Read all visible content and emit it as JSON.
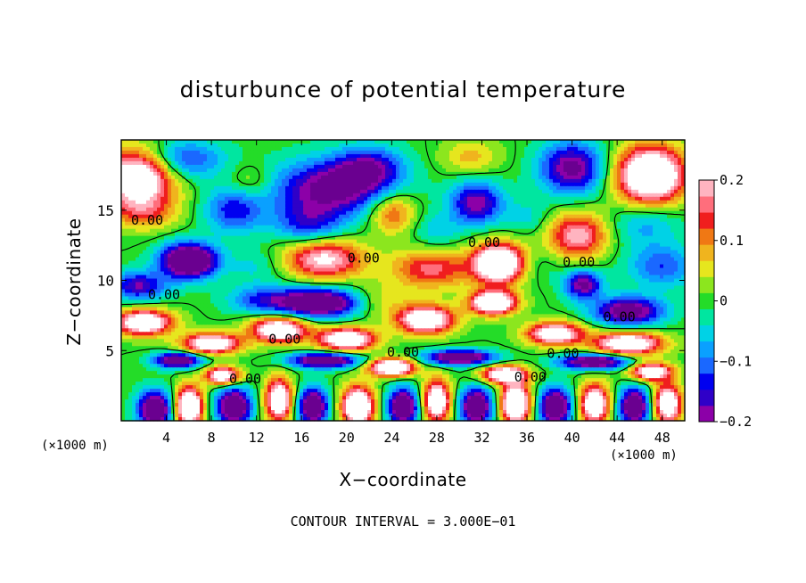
{
  "chart_data": {
    "type": "heatmap",
    "title": "disturbunce of potential temperature",
    "xlabel": "X−coordinate",
    "ylabel": "Z−coordinate",
    "x_unit": "(×1000 m)",
    "x_unit_right": "(×1000 m)",
    "xlim": [
      0,
      50
    ],
    "ylim": [
      0,
      20
    ],
    "x_ticks": [
      4,
      8,
      12,
      16,
      20,
      24,
      28,
      32,
      36,
      40,
      44,
      48
    ],
    "y_ticks": [
      5,
      10,
      15
    ],
    "colorbar": {
      "range": [
        -0.2,
        0.2
      ],
      "tick_values": [
        0.2,
        0.1,
        0,
        -0.1,
        -0.2
      ],
      "tick_labels": [
        "0.2",
        "0.1",
        "0",
        "−0.1",
        "−0.2"
      ]
    },
    "contour_interval_text": "CONTOUR INTERVAL = 3.000E−01",
    "contour_labels": [
      {
        "text": "0.00",
        "x": 2.3,
        "z": 14.3
      },
      {
        "text": "0.00",
        "x": 3.8,
        "z": 9.0
      },
      {
        "text": "0.00",
        "x": 21.5,
        "z": 11.6
      },
      {
        "text": "0.00",
        "x": 32.2,
        "z": 12.7
      },
      {
        "text": "0.00",
        "x": 40.6,
        "z": 11.3
      },
      {
        "text": "0.00",
        "x": 44.2,
        "z": 7.4
      },
      {
        "text": "0.00",
        "x": 14.5,
        "z": 5.8
      },
      {
        "text": "0.00",
        "x": 25.0,
        "z": 4.9
      },
      {
        "text": "0.00",
        "x": 39.2,
        "z": 4.8
      },
      {
        "text": "0.00",
        "x": 11.0,
        "z": 3.0
      },
      {
        "text": "0.00",
        "x": 36.3,
        "z": 3.1
      }
    ],
    "anomalies": [
      {
        "x": 1.5,
        "z": 17.3,
        "v": 0.3,
        "sx": 3.2,
        "sz": 2.0
      },
      {
        "x": 5.5,
        "z": 18.6,
        "v": -0.14,
        "sx": 3.5,
        "sz": 1.4
      },
      {
        "x": 2.0,
        "z": 14.8,
        "v": 0.1,
        "sx": 3.0,
        "sz": 1.2
      },
      {
        "x": 6.0,
        "z": 11.4,
        "v": -0.35,
        "sx": 2.4,
        "sz": 1.2
      },
      {
        "x": 1.5,
        "z": 9.6,
        "v": -0.18,
        "sx": 2.5,
        "sz": 1.0
      },
      {
        "x": 11.5,
        "z": 17.0,
        "v": 0.06,
        "sx": 2.0,
        "sz": 1.2
      },
      {
        "x": 10.0,
        "z": 15.0,
        "v": -0.14,
        "sx": 2.5,
        "sz": 1.6
      },
      {
        "x": 12.0,
        "z": 11.0,
        "v": -0.05,
        "sx": 2.5,
        "sz": 1.2
      },
      {
        "x": 12.5,
        "z": 8.6,
        "v": -0.12,
        "sx": 3.0,
        "sz": 1.0
      },
      {
        "x": 18.5,
        "z": 16.5,
        "v": -0.22,
        "sx": 5.0,
        "sz": 2.0
      },
      {
        "x": 16.5,
        "z": 14.0,
        "v": -0.12,
        "sx": 3.0,
        "sz": 1.4
      },
      {
        "x": 18.0,
        "z": 11.5,
        "v": 0.22,
        "sx": 3.5,
        "sz": 1.4
      },
      {
        "x": 17.5,
        "z": 8.4,
        "v": -0.3,
        "sx": 3.5,
        "sz": 1.0
      },
      {
        "x": 24.0,
        "z": 14.8,
        "v": 0.14,
        "sx": 2.0,
        "sz": 1.4
      },
      {
        "x": 27.5,
        "z": 10.8,
        "v": 0.16,
        "sx": 3.5,
        "sz": 1.4
      },
      {
        "x": 23.0,
        "z": 8.5,
        "v": 0.06,
        "sx": 2.5,
        "sz": 1.2
      },
      {
        "x": 22.0,
        "z": 18.0,
        "v": -0.16,
        "sx": 3.0,
        "sz": 1.5
      },
      {
        "x": 31.0,
        "z": 18.8,
        "v": 0.08,
        "sx": 2.5,
        "sz": 1.2
      },
      {
        "x": 31.5,
        "z": 15.5,
        "v": -0.2,
        "sx": 2.3,
        "sz": 1.5
      },
      {
        "x": 28.0,
        "z": 13.5,
        "v": -0.06,
        "sx": 2.0,
        "sz": 1.2
      },
      {
        "x": 33.5,
        "z": 11.2,
        "v": 0.35,
        "sx": 2.2,
        "sz": 1.4
      },
      {
        "x": 40.0,
        "z": 18.0,
        "v": -0.22,
        "sx": 2.8,
        "sz": 1.8
      },
      {
        "x": 40.5,
        "z": 13.2,
        "v": 0.2,
        "sx": 2.6,
        "sz": 1.6
      },
      {
        "x": 36.0,
        "z": 14.5,
        "v": -0.05,
        "sx": 2.0,
        "sz": 1.2
      },
      {
        "x": 37.0,
        "z": 11.0,
        "v": -0.03,
        "sx": 2.0,
        "sz": 1.2
      },
      {
        "x": 41.0,
        "z": 9.7,
        "v": -0.22,
        "sx": 1.6,
        "sz": 1.0
      },
      {
        "x": 47.0,
        "z": 17.5,
        "v": 0.35,
        "sx": 3.0,
        "sz": 2.0
      },
      {
        "x": 46.5,
        "z": 14.0,
        "v": -0.08,
        "sx": 3.0,
        "sz": 1.5
      },
      {
        "x": 48.0,
        "z": 11.0,
        "v": -0.12,
        "sx": 3.0,
        "sz": 1.5
      },
      {
        "x": 45.0,
        "z": 7.8,
        "v": -0.25,
        "sx": 3.0,
        "sz": 1.0
      },
      {
        "x": 2.0,
        "z": 7.0,
        "v": 0.3,
        "sx": 2.5,
        "sz": 0.9
      },
      {
        "x": 8.0,
        "z": 5.5,
        "v": 0.3,
        "sx": 2.5,
        "sz": 0.7
      },
      {
        "x": 14.0,
        "z": 6.5,
        "v": 0.3,
        "sx": 2.5,
        "sz": 0.9
      },
      {
        "x": 20.0,
        "z": 5.8,
        "v": 0.3,
        "sx": 2.5,
        "sz": 0.8
      },
      {
        "x": 27.0,
        "z": 7.2,
        "v": 0.3,
        "sx": 2.5,
        "sz": 1.0
      },
      {
        "x": 33.0,
        "z": 8.4,
        "v": 0.35,
        "sx": 2.0,
        "sz": 0.8
      },
      {
        "x": 38.5,
        "z": 6.2,
        "v": 0.28,
        "sx": 2.5,
        "sz": 0.8
      },
      {
        "x": 45.0,
        "z": 5.5,
        "v": 0.3,
        "sx": 3.0,
        "sz": 0.8
      },
      {
        "x": 5.0,
        "z": 4.3,
        "v": -0.3,
        "sx": 2.0,
        "sz": 0.5
      },
      {
        "x": 18.0,
        "z": 4.3,
        "v": -0.3,
        "sx": 3.0,
        "sz": 0.5
      },
      {
        "x": 30.0,
        "z": 4.5,
        "v": -0.3,
        "sx": 3.0,
        "sz": 0.5
      },
      {
        "x": 42.0,
        "z": 4.2,
        "v": -0.3,
        "sx": 3.0,
        "sz": 0.5
      },
      {
        "x": 9.0,
        "z": 3.2,
        "v": 0.3,
        "sx": 1.5,
        "sz": 0.6
      },
      {
        "x": 24.0,
        "z": 3.8,
        "v": 0.35,
        "sx": 2.0,
        "sz": 0.6
      },
      {
        "x": 34.0,
        "z": 3.3,
        "v": 0.3,
        "sx": 2.0,
        "sz": 0.6
      },
      {
        "x": 47.0,
        "z": 3.5,
        "v": 0.3,
        "sx": 1.8,
        "sz": 0.6
      },
      {
        "x": 3.0,
        "z": 0.8,
        "v": -0.3,
        "sx": 1.5,
        "sz": 1.3
      },
      {
        "x": 6.0,
        "z": 1.0,
        "v": 0.35,
        "sx": 1.2,
        "sz": 1.4
      },
      {
        "x": 10.0,
        "z": 1.0,
        "v": -0.3,
        "sx": 1.5,
        "sz": 1.3
      },
      {
        "x": 14.0,
        "z": 1.5,
        "v": 0.3,
        "sx": 1.2,
        "sz": 1.5
      },
      {
        "x": 17.0,
        "z": 1.0,
        "v": -0.3,
        "sx": 1.3,
        "sz": 1.3
      },
      {
        "x": 21.0,
        "z": 1.0,
        "v": 0.35,
        "sx": 1.4,
        "sz": 1.4
      },
      {
        "x": 25.0,
        "z": 1.0,
        "v": -0.3,
        "sx": 1.3,
        "sz": 1.3
      },
      {
        "x": 28.0,
        "z": 1.4,
        "v": 0.3,
        "sx": 1.2,
        "sz": 1.5
      },
      {
        "x": 31.5,
        "z": 1.0,
        "v": -0.3,
        "sx": 1.4,
        "sz": 1.3
      },
      {
        "x": 35.0,
        "z": 1.2,
        "v": 0.35,
        "sx": 1.3,
        "sz": 1.4
      },
      {
        "x": 38.5,
        "z": 1.0,
        "v": -0.3,
        "sx": 1.4,
        "sz": 1.3
      },
      {
        "x": 42.0,
        "z": 1.2,
        "v": 0.3,
        "sx": 1.3,
        "sz": 1.4
      },
      {
        "x": 45.5,
        "z": 1.0,
        "v": -0.3,
        "sx": 1.3,
        "sz": 1.3
      },
      {
        "x": 48.5,
        "z": 1.2,
        "v": 0.3,
        "sx": 1.2,
        "sz": 1.4
      }
    ]
  }
}
